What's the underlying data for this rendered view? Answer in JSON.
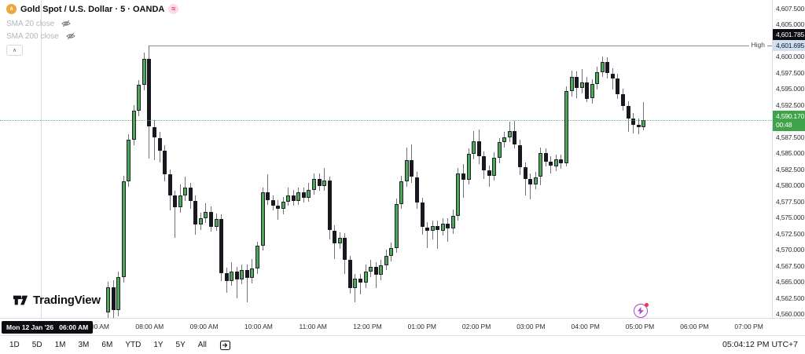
{
  "legend": {
    "title": "Gold Spot / U.S. Dollar · 5 · OANDA",
    "status_glyph": "≈",
    "indicators": [
      {
        "label": "SMA 20 close"
      },
      {
        "label": "SMA 200 close"
      }
    ],
    "collapse_glyph": "∧",
    "symbol_icon_glyph": "∧"
  },
  "logo": {
    "text": "TradingView"
  },
  "annotations": {
    "high_line_label": "High"
  },
  "price_axis": {
    "high_badge": "4,601.785",
    "high_value_label": "4,601.695",
    "last_badge": {
      "price": "4,590.170",
      "countdown": "00:48"
    },
    "labels": [
      {
        "text": "4,607.500",
        "value": 4607.5
      },
      {
        "text": "4,605.000",
        "value": 4605.0
      },
      {
        "text": "4,600.000",
        "value": 4600.0
      },
      {
        "text": "4,597.500",
        "value": 4597.5
      },
      {
        "text": "4,595.000",
        "value": 4595.0
      },
      {
        "text": "4,592.500",
        "value": 4592.5
      },
      {
        "text": "4,587.500",
        "value": 4587.5
      },
      {
        "text": "4,585.000",
        "value": 4585.0
      },
      {
        "text": "4,582.500",
        "value": 4582.5
      },
      {
        "text": "4,580.000",
        "value": 4580.0
      },
      {
        "text": "4,577.500",
        "value": 4577.5
      },
      {
        "text": "4,575.000",
        "value": 4575.0
      },
      {
        "text": "4,572.500",
        "value": 4572.5
      },
      {
        "text": "4,570.000",
        "value": 4570.0
      },
      {
        "text": "4,567.500",
        "value": 4567.5
      },
      {
        "text": "4,565.000",
        "value": 4565.0
      },
      {
        "text": "4,562.500",
        "value": 4562.5
      },
      {
        "text": "4,560.000",
        "value": 4560.0
      }
    ]
  },
  "time_axis": {
    "session_badge": "Mon 12 Jan '26   06:00 AM",
    "ticks": [
      "07:00 AM",
      "08:00 AM",
      "09:00 AM",
      "10:00 AM",
      "11:00 AM",
      "12:00 PM",
      "01:00 PM",
      "02:00 PM",
      "03:00 PM",
      "04:00 PM",
      "05:00 PM",
      "06:00 PM",
      "07:00 PM"
    ]
  },
  "toolbar": {
    "ranges": [
      "1D",
      "5D",
      "1M",
      "3M",
      "6M",
      "YTD",
      "1Y",
      "5Y",
      "All"
    ],
    "clock": "05:04:12 PM UTC+7"
  },
  "colors": {
    "up": "#4ea757",
    "down": "#17191e",
    "last_price_line": "#58b15f",
    "high_axis_label_bg": "#cfe0f5",
    "accent_violet": "#a746c9"
  },
  "chart_data": {
    "type": "candlestick",
    "title": "Gold Spot / U.S. Dollar",
    "interval": "5",
    "exchange": "OANDA",
    "session_high": 4601.695,
    "session_high_secondary": 4601.785,
    "last_price": 4590.17,
    "bar_countdown": "00:48",
    "y_range": [
      4559.0,
      4608.8
    ],
    "x_range_labels": [
      "06:00 AM",
      "07:00 PM"
    ],
    "grid": false,
    "candles_ohlc": [
      [
        4560.3,
        4565.0,
        4559.3,
        4564.2
      ],
      [
        4564.2,
        4565.3,
        4559.2,
        4560.6
      ],
      [
        4560.6,
        4566.6,
        4559.6,
        4565.8
      ],
      [
        4565.8,
        4581.5,
        4564.9,
        4580.6
      ],
      [
        4580.6,
        4588.0,
        4579.8,
        4587.1
      ],
      [
        4587.1,
        4592.5,
        4586.2,
        4591.6
      ],
      [
        4591.6,
        4596.4,
        4590.8,
        4595.6
      ],
      [
        4595.6,
        4600.6,
        4594.8,
        4599.6
      ],
      [
        4599.6,
        4601.695,
        4584.2,
        4589.1
      ],
      [
        4589.1,
        4590.2,
        4583.9,
        4587.4
      ],
      [
        4587.4,
        4588.3,
        4583.5,
        4585.4
      ],
      [
        4585.4,
        4586.2,
        4580.6,
        4581.7
      ],
      [
        4581.7,
        4582.5,
        4576.1,
        4578.4
      ],
      [
        4578.4,
        4579.2,
        4571.9,
        4576.6
      ],
      [
        4576.6,
        4580.1,
        4575.8,
        4578.4
      ],
      [
        4578.4,
        4581.4,
        4577.6,
        4579.6
      ],
      [
        4579.6,
        4580.4,
        4576.4,
        4577.6
      ],
      [
        4577.6,
        4578.4,
        4572.3,
        4573.9
      ],
      [
        4573.9,
        4575.7,
        4573.1,
        4574.9
      ],
      [
        4574.9,
        4577.2,
        4574.1,
        4575.9
      ],
      [
        4575.9,
        4576.7,
        4572.8,
        4573.6
      ],
      [
        4573.6,
        4575.6,
        4572.9,
        4574.8
      ],
      [
        4574.8,
        4575.5,
        4565.2,
        4566.4
      ],
      [
        4566.4,
        4567.2,
        4563.3,
        4565.1
      ],
      [
        4565.1,
        4568.1,
        4564.4,
        4566.6
      ],
      [
        4566.6,
        4567.4,
        4562.5,
        4565.4
      ],
      [
        4565.4,
        4567.7,
        4564.6,
        4566.9
      ],
      [
        4566.9,
        4567.7,
        4561.9,
        4565.6
      ],
      [
        4565.6,
        4568.6,
        4564.8,
        4567.1
      ],
      [
        4567.1,
        4571.3,
        4566.3,
        4570.6
      ],
      [
        4570.6,
        4579.7,
        4569.9,
        4578.9
      ],
      [
        4578.9,
        4581.7,
        4577.0,
        4577.7
      ],
      [
        4577.7,
        4578.5,
        4576.1,
        4576.9
      ],
      [
        4576.9,
        4577.7,
        4574.6,
        4576.3
      ],
      [
        4576.3,
        4578.2,
        4575.5,
        4577.5
      ],
      [
        4577.5,
        4579.6,
        4576.8,
        4578.5
      ],
      [
        4578.5,
        4579.3,
        4576.8,
        4577.6
      ],
      [
        4577.6,
        4579.6,
        4576.9,
        4578.9
      ],
      [
        4578.9,
        4579.7,
        4577.3,
        4578.1
      ],
      [
        4578.1,
        4580.4,
        4577.4,
        4579.3
      ],
      [
        4579.3,
        4581.9,
        4578.6,
        4581.0
      ],
      [
        4581.0,
        4581.8,
        4579.1,
        4579.9
      ],
      [
        4579.9,
        4582.7,
        4579.2,
        4580.7
      ],
      [
        4580.7,
        4581.4,
        4571.6,
        4573.0
      ],
      [
        4573.0,
        4573.8,
        4568.6,
        4571.0
      ],
      [
        4571.0,
        4572.7,
        4570.2,
        4571.9
      ],
      [
        4571.9,
        4572.6,
        4566.2,
        4568.4
      ],
      [
        4568.4,
        4569.1,
        4563.2,
        4564.1
      ],
      [
        4564.1,
        4566.3,
        4561.9,
        4565.5
      ],
      [
        4565.5,
        4566.3,
        4563.1,
        4564.9
      ],
      [
        4564.9,
        4567.7,
        4564.1,
        4566.6
      ],
      [
        4566.6,
        4568.4,
        4565.8,
        4567.3
      ],
      [
        4567.3,
        4568.1,
        4564.0,
        4566.1
      ],
      [
        4566.1,
        4568.4,
        4565.3,
        4567.6
      ],
      [
        4567.6,
        4570.0,
        4566.8,
        4569.0
      ],
      [
        4569.0,
        4571.1,
        4568.2,
        4570.3
      ],
      [
        4570.3,
        4577.9,
        4569.5,
        4577.1
      ],
      [
        4577.1,
        4581.5,
        4576.3,
        4580.6
      ],
      [
        4580.6,
        4585.9,
        4579.8,
        4583.9
      ],
      [
        4583.9,
        4586.4,
        4580.4,
        4581.3
      ],
      [
        4581.3,
        4582.1,
        4576.4,
        4577.3
      ],
      [
        4577.3,
        4578.1,
        4572.3,
        4573.5
      ],
      [
        4573.5,
        4574.3,
        4570.3,
        4572.9
      ],
      [
        4572.9,
        4574.5,
        4571.6,
        4573.7
      ],
      [
        4573.7,
        4574.5,
        4570.1,
        4573.0
      ],
      [
        4573.0,
        4574.9,
        4572.2,
        4574.1
      ],
      [
        4574.1,
        4574.9,
        4571.3,
        4573.3
      ],
      [
        4573.3,
        4576.3,
        4572.5,
        4575.3
      ],
      [
        4575.3,
        4582.7,
        4574.5,
        4581.9
      ],
      [
        4581.9,
        4583.3,
        4578.1,
        4580.9
      ],
      [
        4580.9,
        4585.7,
        4580.1,
        4584.9
      ],
      [
        4584.9,
        4588.4,
        4584.1,
        4586.9
      ],
      [
        4586.9,
        4588.7,
        4583.3,
        4584.5
      ],
      [
        4584.5,
        4585.3,
        4581.0,
        4582.3
      ],
      [
        4582.3,
        4583.1,
        4579.8,
        4581.5
      ],
      [
        4581.5,
        4585.1,
        4580.7,
        4584.3
      ],
      [
        4584.3,
        4587.4,
        4583.5,
        4586.7
      ],
      [
        4586.7,
        4588.3,
        4585.9,
        4587.5
      ],
      [
        4587.5,
        4589.9,
        4586.7,
        4588.4
      ],
      [
        4588.4,
        4590.0,
        4585.7,
        4586.3
      ],
      [
        4586.3,
        4587.1,
        4581.6,
        4582.8
      ],
      [
        4582.8,
        4583.6,
        4578.4,
        4581.0
      ],
      [
        4581.0,
        4581.8,
        4577.8,
        4580.2
      ],
      [
        4580.2,
        4582.1,
        4579.4,
        4581.3
      ],
      [
        4581.3,
        4585.9,
        4580.0,
        4585.0
      ],
      [
        4585.0,
        4585.8,
        4583.0,
        4583.7
      ],
      [
        4583.7,
        4584.5,
        4581.9,
        4583.0
      ],
      [
        4583.0,
        4584.8,
        4582.2,
        4584.0
      ],
      [
        4584.0,
        4584.8,
        4582.6,
        4583.4
      ],
      [
        4583.4,
        4595.4,
        4582.9,
        4594.6
      ],
      [
        4594.6,
        4597.8,
        4593.8,
        4596.9
      ],
      [
        4596.9,
        4597.7,
        4593.6,
        4595.1
      ],
      [
        4595.1,
        4598.1,
        4594.3,
        4596.0
      ],
      [
        4596.0,
        4596.8,
        4592.9,
        4593.5
      ],
      [
        4593.5,
        4596.5,
        4592.7,
        4595.7
      ],
      [
        4595.7,
        4598.5,
        4594.9,
        4597.6
      ],
      [
        4597.6,
        4600.0,
        4596.8,
        4599.2
      ],
      [
        4599.2,
        4599.9,
        4596.6,
        4597.4
      ],
      [
        4597.4,
        4598.2,
        4594.9,
        4596.6
      ],
      [
        4596.6,
        4597.4,
        4593.5,
        4594.2
      ],
      [
        4594.2,
        4595.0,
        4591.6,
        4592.3
      ],
      [
        4592.3,
        4593.1,
        4588.3,
        4590.4
      ],
      [
        4590.4,
        4591.2,
        4588.0,
        4589.4
      ],
      [
        4589.4,
        4590.4,
        4587.9,
        4589.0
      ],
      [
        4589.0,
        4592.9,
        4588.6,
        4590.17
      ]
    ]
  }
}
